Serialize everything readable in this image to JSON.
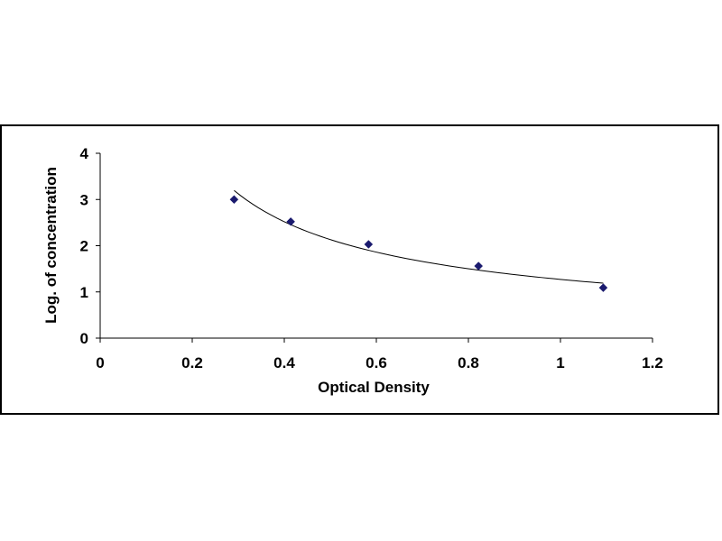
{
  "chart_data": {
    "type": "scatter",
    "title": "",
    "xlabel": "Optical Density",
    "ylabel": "Log. of concentration",
    "xlim": [
      0,
      1.2
    ],
    "ylim": [
      0,
      4
    ],
    "x_ticks": [
      "0",
      "0.2",
      "0.4",
      "0.6",
      "0.8",
      "1",
      "1.2"
    ],
    "y_ticks": [
      "0",
      "1",
      "2",
      "3",
      "4"
    ],
    "grid": false,
    "legend": "none",
    "marker_color": "#1a1a6e",
    "line_color": "#000000",
    "trendline": "power",
    "series": [
      {
        "x": [
          0.291,
          0.414,
          0.583,
          0.822,
          1.093
        ],
        "y": [
          3.0,
          2.52,
          2.03,
          1.56,
          1.09
        ]
      }
    ]
  }
}
